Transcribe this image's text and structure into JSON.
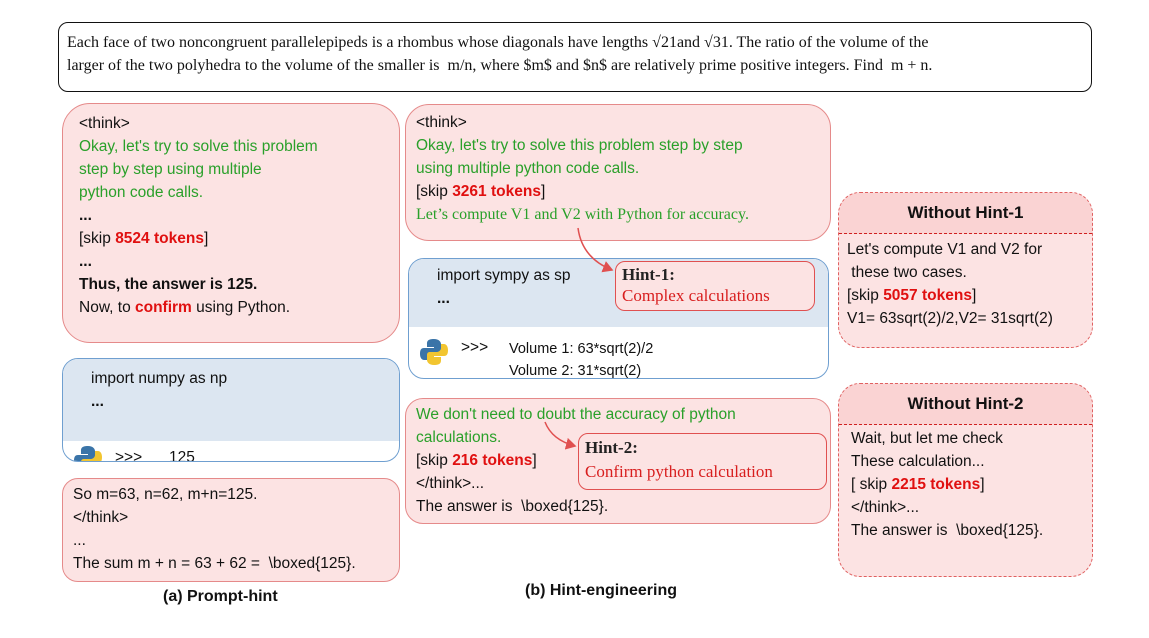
{
  "problem": {
    "lines": [
      "Each face of two noncongruent parallelepipeds is a rhombus whose diagonals have lengths √21and √31. The ratio of the volume of the",
      "larger of the two polyhedra to the volume of the smaller is  m/n, where $m$ and $n$ are relatively prime positive integers. Find  m + n."
    ]
  },
  "prompt_hint": {
    "think": {
      "open": "<think>",
      "green_lines": [
        "Okay, let's try to solve this problem",
        "step by step using multiple",
        "python code calls."
      ],
      "dots1": "...",
      "skip_pre": "[skip ",
      "skip_tokens": "8524 tokens",
      "skip_post": "]",
      "dots2": "...",
      "answer": "Thus, the answer is 125.",
      "confirm_pre": "Now, to ",
      "confirm": "confirm",
      "confirm_post": " using Python."
    },
    "code": {
      "line": "import numpy as np",
      "dots": "...",
      "prompt": ">>>",
      "output": "125"
    },
    "result": {
      "lines": [
        "So m=63, n=62, m+n=125.",
        "</think>",
        "...",
        "The sum m + n = 63 + 62 =  \\boxed{125}."
      ]
    },
    "caption": "(a) Prompt-hint"
  },
  "hint_engineering": {
    "think": {
      "open": "<think>",
      "green_lines": [
        "Okay, let's try to solve this problem step by step",
        "using multiple python code calls."
      ],
      "skip_pre": "[skip ",
      "skip_tokens": "3261 tokens",
      "skip_post": "]",
      "green_last": "Let’s compute V1 and V2 with Python for accuracy."
    },
    "code": {
      "line": "import sympy as sp",
      "dots": "...",
      "prompt": ">>>",
      "outputs": [
        "Volume 1: 63*sqrt(2)/2",
        "Volume 2: 31*sqrt(2)"
      ]
    },
    "hint1": {
      "label": "Hint-1:",
      "text": "Complex calculations"
    },
    "bottom": {
      "green_lines": [
        "We don't need to doubt the accuracy of python",
        "calculations."
      ],
      "skip_pre": "[skip ",
      "skip_tokens": "216 tokens",
      "skip_post": "]",
      "close": "</think>...",
      "answer": "The answer is  \\boxed{125}."
    },
    "hint2": {
      "label": "Hint-2:",
      "text": "Confirm python calculation"
    },
    "caption": "(b) Hint-engineering"
  },
  "without_hint1": {
    "title": "Without Hint-1",
    "lines": [
      "Let's compute V1 and V2 for",
      " these two cases."
    ],
    "skip_pre": "[skip ",
    "skip_tokens": "5057 tokens",
    "skip_post": "]",
    "result": "V1= 63sqrt(2)/2,V2= 31sqrt(2)"
  },
  "without_hint2": {
    "title": "Without Hint-2",
    "lines": [
      "Wait, but let me check",
      "These calculation..."
    ],
    "skip_pre": "[ skip ",
    "skip_tokens": "2215 tokens",
    "skip_post": "]",
    "close": "</think>...",
    "answer": "The answer is  \\boxed{125}."
  }
}
